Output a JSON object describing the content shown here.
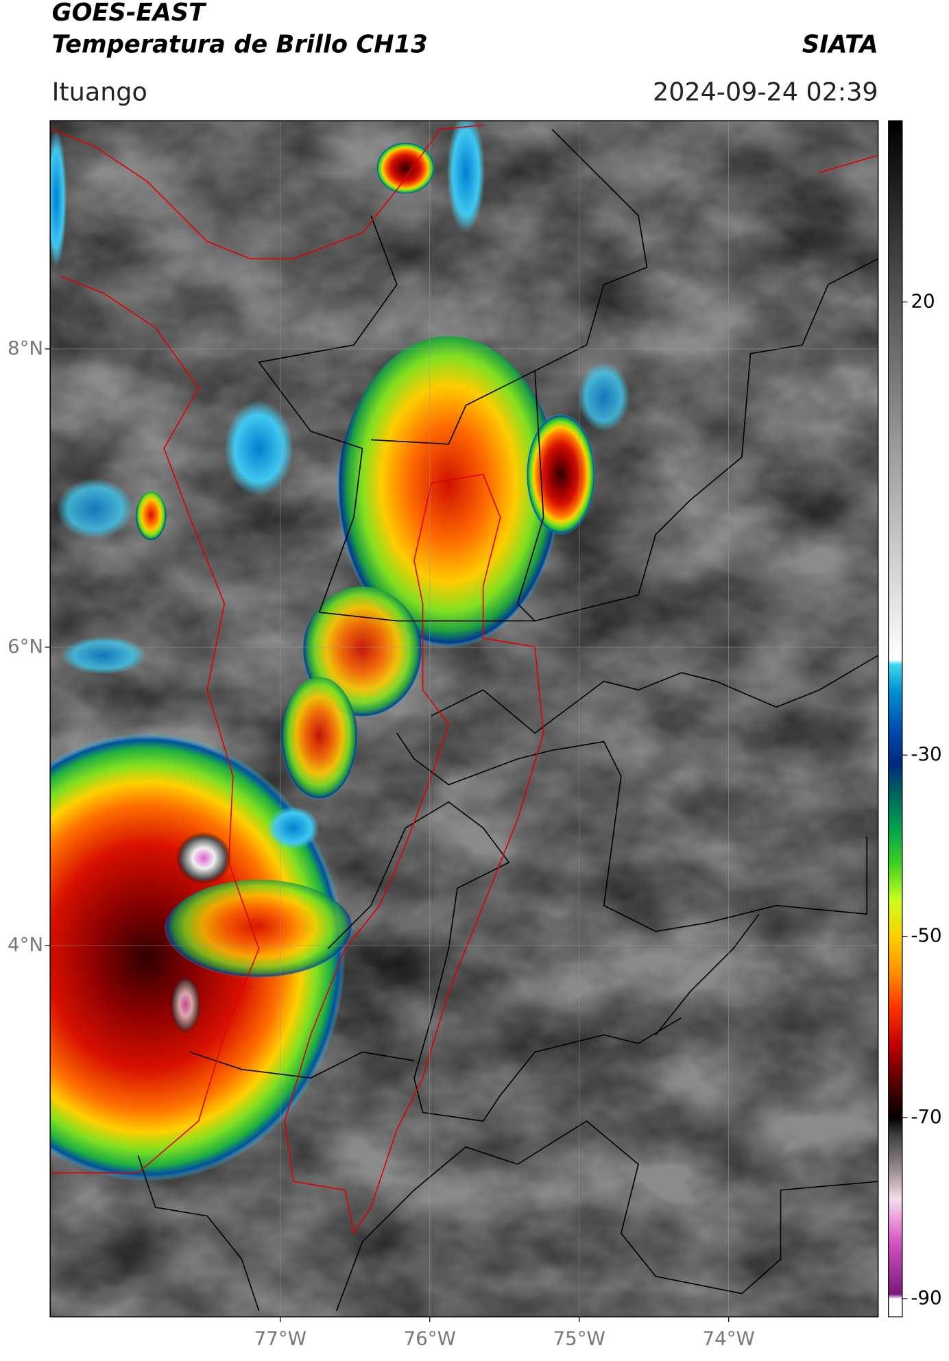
{
  "header": {
    "title_line1": "GOES-EAST",
    "title_line2": "Temperatura de Brillo CH13",
    "brand": "SIATA",
    "location": "Ituango",
    "datetime": "2024-09-24 02:39"
  },
  "map": {
    "lonlim": [
      -78.54,
      -73.0
    ],
    "latlim": [
      1.51,
      9.53
    ],
    "lon_ticks": [
      {
        "value": -77,
        "label": "77°W"
      },
      {
        "value": -76,
        "label": "76°W"
      },
      {
        "value": -75,
        "label": "75°W"
      },
      {
        "value": -74,
        "label": "74°W"
      }
    ],
    "lat_ticks": [
      {
        "value": 8,
        "label": "8°N"
      },
      {
        "value": 6,
        "label": "6°N"
      },
      {
        "value": 4,
        "label": "4°N"
      }
    ],
    "grid": true
  },
  "colorbar": {
    "lim": [
      -92,
      40
    ],
    "ticks": [
      20,
      -30,
      -50,
      -70,
      -90
    ],
    "stops": [
      {
        "value": -92,
        "color": "#ffffff"
      },
      {
        "value": -90,
        "color": "#ffffff"
      },
      {
        "value": -89.5,
        "color": "#7a1a7a"
      },
      {
        "value": -84,
        "color": "#d050c0"
      },
      {
        "value": -81,
        "color": "#f0a0e0"
      },
      {
        "value": -79,
        "color": "#f0e0ec"
      },
      {
        "value": -76,
        "color": "#a09098"
      },
      {
        "value": -72,
        "color": "#404040"
      },
      {
        "value": -70,
        "color": "#000000"
      },
      {
        "value": -66,
        "color": "#5a0000"
      },
      {
        "value": -62,
        "color": "#c00000"
      },
      {
        "value": -58,
        "color": "#ff3000"
      },
      {
        "value": -54,
        "color": "#ff9000"
      },
      {
        "value": -50,
        "color": "#ffd000"
      },
      {
        "value": -46,
        "color": "#c8ff20"
      },
      {
        "value": -42,
        "color": "#40d020"
      },
      {
        "value": -38,
        "color": "#00a050"
      },
      {
        "value": -34,
        "color": "#006060"
      },
      {
        "value": -31,
        "color": "#002880"
      },
      {
        "value": -27,
        "color": "#0050b0"
      },
      {
        "value": -23,
        "color": "#0090d0"
      },
      {
        "value": -20,
        "color": "#40d8f0"
      },
      {
        "value": -19.5,
        "color": "#ffffff"
      },
      {
        "value": 40,
        "color": "#000000"
      }
    ]
  }
}
